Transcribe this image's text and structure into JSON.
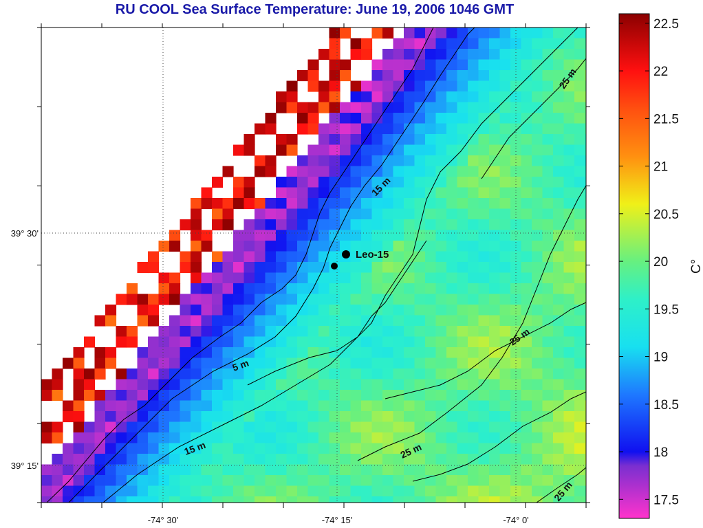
{
  "title": "RU COOL  Sea Surface Temperature:  June 19, 2006 1046 GMT",
  "map": {
    "x_tick_labels": [
      "-74° 30'",
      "-74° 15'",
      "-74° 0'"
    ],
    "y_tick_labels": [
      "39° 30'",
      "39° 15'"
    ],
    "contour_labels": [
      "25 m",
      "15 m",
      "5 m",
      "25 m",
      "15 m",
      "25 m",
      "25 m"
    ],
    "station": {
      "name": "Leo-15"
    },
    "grid": true
  },
  "colorbar": {
    "unit_label": "C°",
    "ticks": [
      "22.5",
      "22",
      "21.5",
      "21",
      "20.5",
      "20",
      "19.5",
      "19",
      "18.5",
      "18",
      "17.5"
    ],
    "range": [
      17.3,
      22.6
    ],
    "colors": {
      "magenta": "#ff33cc",
      "purple": "#7a2fd0",
      "blue": "#1010f0",
      "cyan": "#18e0f0",
      "green": "#66f080",
      "yellow": "#f0f018",
      "orange": "#ff9010",
      "red": "#ff1010",
      "darkred": "#8b0000"
    }
  }
}
